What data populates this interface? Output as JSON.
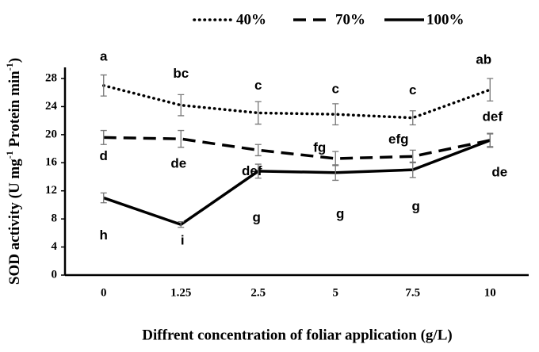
{
  "chart_data": {
    "type": "line",
    "y_label": [
      "SOD activity (U mg",
      "-1",
      " Protein min",
      "-1",
      ")"
    ],
    "x_label": "Diffrent concentration of foliar application (g/L)",
    "categories": [
      "0",
      "1.25",
      "2.5",
      "5",
      "7.5",
      "10"
    ],
    "ylim": [
      0,
      30
    ],
    "yticks": [
      0,
      4,
      8,
      12,
      16,
      20,
      24,
      28
    ],
    "series": [
      {
        "name": "40%",
        "color": "#000000",
        "dash": "dotted",
        "values": [
          27.0,
          24.2,
          23.1,
          22.9,
          22.4,
          26.4
        ],
        "errors": [
          1.5,
          1.5,
          1.6,
          1.5,
          1.0,
          1.6
        ],
        "letters": [
          "a",
          "bc",
          "c",
          "c",
          "c",
          "ab"
        ]
      },
      {
        "name": "70%",
        "color": "#000000",
        "dash": "dashed",
        "values": [
          19.6,
          19.4,
          17.8,
          16.6,
          16.9,
          19.2
        ],
        "errors": [
          1.0,
          1.2,
          0.8,
          1.0,
          0.9,
          0.9
        ],
        "letters": [
          "d",
          "de",
          "def",
          "fg",
          "efg",
          "def"
        ]
      },
      {
        "name": "100%",
        "color": "#000000",
        "dash": "solid",
        "values": [
          11.0,
          7.2,
          14.8,
          14.6,
          15.0,
          19.2
        ],
        "errors": [
          0.7,
          0.4,
          1.0,
          1.1,
          1.1,
          1.0
        ],
        "letters": [
          "h",
          "i",
          "g",
          "g",
          "g",
          "de"
        ]
      }
    ]
  }
}
